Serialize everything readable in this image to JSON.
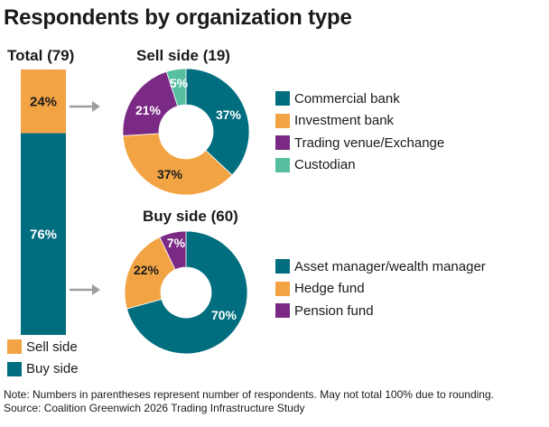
{
  "title": "Respondents by organization type",
  "colors": {
    "teal": "#006E7F",
    "orange": "#F2A444",
    "purple": "#7A2A85",
    "green": "#55BFA0",
    "arrow": "#9E9E9E"
  },
  "chart_data": [
    {
      "type": "bar",
      "stacked": true,
      "title": "Total (79)",
      "categories": [
        "Total"
      ],
      "series": [
        {
          "name": "Sell side",
          "values": [
            24
          ],
          "label": "24%",
          "color": "#F2A444"
        },
        {
          "name": "Buy side",
          "values": [
            76
          ],
          "label": "76%",
          "color": "#006E7F"
        }
      ]
    },
    {
      "type": "pie",
      "donut": true,
      "title": "Sell side (19)",
      "slices": [
        {
          "name": "Commercial bank",
          "value": 37,
          "label": "37%",
          "color": "#006E7F"
        },
        {
          "name": "Investment bank",
          "value": 37,
          "label": "37%",
          "color": "#F2A444"
        },
        {
          "name": "Trading venue/Exchange",
          "value": 21,
          "label": "21%",
          "color": "#7A2A85"
        },
        {
          "name": "Custodian",
          "value": 5,
          "label": "5%",
          "color": "#55BFA0"
        }
      ]
    },
    {
      "type": "pie",
      "donut": true,
      "title": "Buy side (60)",
      "slices": [
        {
          "name": "Asset manager/wealth manager",
          "value": 70,
          "label": "70%",
          "color": "#006E7F"
        },
        {
          "name": "Hedge fund",
          "value": 22,
          "label": "22%",
          "color": "#F2A444"
        },
        {
          "name": "Pension fund",
          "value": 7,
          "label": "7%",
          "color": "#7A2A85"
        }
      ]
    }
  ],
  "note": "Note: Numbers in parentheses represent number of respondents. May not total 100% due to rounding.",
  "source": "Source: Coalition Greenwich 2026 Trading Infrastructure Study"
}
